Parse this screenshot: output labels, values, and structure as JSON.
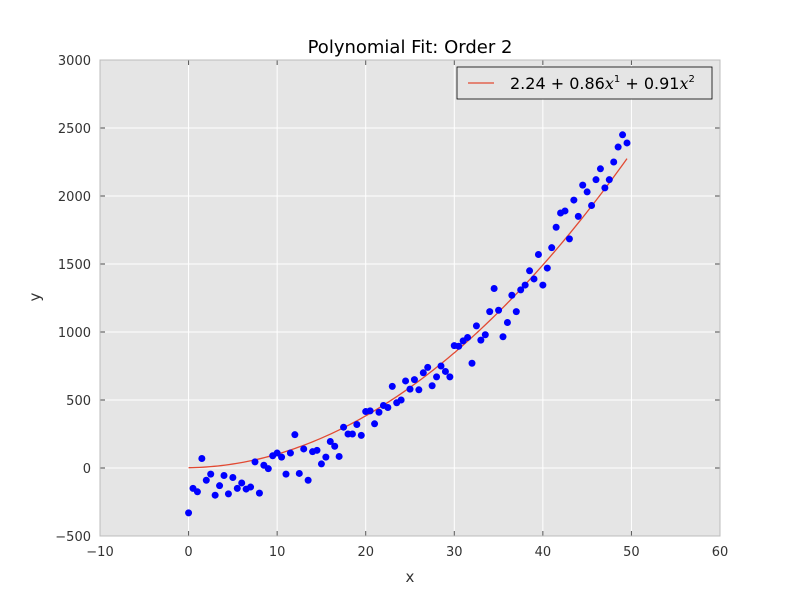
{
  "chart_data": {
    "type": "scatter",
    "title": "Polynomial Fit: Order 2",
    "xlabel": "x",
    "ylabel": "y",
    "xlim": [
      -10,
      60
    ],
    "ylim": [
      -500,
      3000
    ],
    "xticks": [
      -10,
      0,
      10,
      20,
      30,
      40,
      50,
      60
    ],
    "xtick_labels": [
      "−10",
      "0",
      "10",
      "20",
      "30",
      "40",
      "50",
      "60"
    ],
    "yticks": [
      -500,
      0,
      500,
      1000,
      1500,
      2000,
      2500,
      3000
    ],
    "ytick_labels": [
      "−500",
      "0",
      "500",
      "1000",
      "1500",
      "2000",
      "2500",
      "3000"
    ],
    "grid": true,
    "background": "#e5e5e5",
    "legend_position": "top-right",
    "colors": {
      "points": "#0000ff",
      "fit": "#e24a33"
    },
    "series": [
      {
        "kind": "points",
        "x": [
          0,
          0.5,
          1,
          1.5,
          2,
          2.5,
          3,
          3.5,
          4,
          4.5,
          5,
          5.5,
          6,
          6.5,
          7,
          7.5,
          8,
          8.5,
          9,
          9.5,
          10,
          10.5,
          11,
          11.5,
          12,
          12.5,
          13,
          13.5,
          14,
          14.5,
          15,
          15.5,
          16,
          16.5,
          17,
          17.5,
          18,
          18.5,
          19,
          19.5,
          20,
          20.5,
          21,
          21.5,
          22,
          22.5,
          23,
          23.5,
          24,
          24.5,
          25,
          25.5,
          26,
          26.5,
          27,
          27.5,
          28,
          28.5,
          29,
          29.5,
          30,
          30.5,
          31,
          31.5,
          32,
          32.5,
          33,
          33.5,
          34,
          34.5,
          35,
          35.5,
          36,
          36.5,
          37,
          37.5,
          38,
          38.5,
          39,
          39.5,
          40,
          40.5,
          41,
          41.5,
          42,
          42.5,
          43,
          43.5,
          44,
          44.5,
          45,
          45.5,
          46,
          46.5,
          47,
          47.5,
          48,
          48.5,
          49,
          49.5
        ],
        "y": [
          -330,
          -150,
          -175,
          70,
          -90,
          -45,
          -200,
          -130,
          -55,
          -190,
          -70,
          -150,
          -110,
          -155,
          -140,
          45,
          -185,
          20,
          -5,
          90,
          110,
          80,
          -45,
          110,
          245,
          -40,
          140,
          -90,
          120,
          130,
          30,
          80,
          195,
          160,
          85,
          300,
          250,
          250,
          320,
          240,
          415,
          420,
          325,
          410,
          460,
          445,
          600,
          480,
          500,
          640,
          580,
          650,
          575,
          700,
          740,
          605,
          670,
          750,
          710,
          670,
          900,
          895,
          935,
          960,
          770,
          1045,
          940,
          980,
          1150,
          1320,
          1160,
          965,
          1070,
          1270,
          1150,
          1310,
          1345,
          1450,
          1390,
          1570,
          1345,
          1470,
          1620,
          1770,
          1875,
          1890,
          1685,
          1970,
          1850,
          2080,
          2030,
          1930,
          2120,
          2200,
          2060,
          2120,
          2250,
          2360,
          2450,
          2390
        ]
      },
      {
        "kind": "fit",
        "name": "2.24 + 0.86x¹ + 0.91x²",
        "name_parts": {
          "eq": "2.24 + 0.86",
          "var1": "x",
          "exp1": "1",
          "mid": " + 0.91",
          "var2": "x",
          "exp2": "2"
        },
        "coefficients": [
          2.24,
          0.86,
          0.91
        ],
        "x_range": [
          0,
          49.5
        ]
      }
    ]
  }
}
